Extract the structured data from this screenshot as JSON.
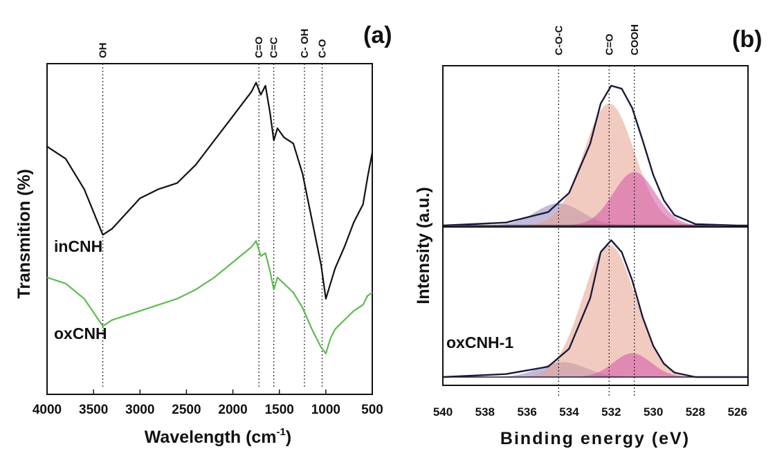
{
  "chart_data": [
    {
      "panel_label": "(a)",
      "type": "line",
      "ylabel": "Transmition (%)",
      "xlabel": "Wavelength (cm",
      "xlabel_sup": "-1",
      "xlabel_tail": ")",
      "xlim": [
        4000,
        500
      ],
      "xticks": [
        "4000",
        "3500",
        "3000",
        "2500",
        "2000",
        "1500",
        "1000",
        "500"
      ],
      "ylim": [
        0,
        1
      ],
      "peak_markers": [
        {
          "label": "OH",
          "x": 3400
        },
        {
          "label": "C=O",
          "x": 1720
        },
        {
          "label": "C=C",
          "x": 1560
        },
        {
          "label": "C- OH",
          "x": 1230
        },
        {
          "label": "C-O",
          "x": 1040
        }
      ],
      "series": [
        {
          "name": "inCNH",
          "color": "#111111",
          "x": [
            4000,
            3800,
            3600,
            3400,
            3300,
            3000,
            2800,
            2600,
            2400,
            2200,
            2000,
            1800,
            1750,
            1700,
            1650,
            1600,
            1560,
            1520,
            1450,
            1350,
            1250,
            1150,
            1050,
            1000,
            950,
            900,
            800,
            700,
            600,
            550,
            500
          ],
          "y": [
            0.78,
            0.74,
            0.64,
            0.49,
            0.51,
            0.61,
            0.64,
            0.66,
            0.72,
            0.8,
            0.88,
            0.96,
            0.99,
            0.95,
            0.98,
            0.89,
            0.8,
            0.84,
            0.81,
            0.79,
            0.69,
            0.54,
            0.39,
            0.28,
            0.33,
            0.38,
            0.45,
            0.53,
            0.59,
            0.68,
            0.76
          ]
        },
        {
          "name": "oxCNH",
          "color": "#5dbb4f",
          "x": [
            4000,
            3800,
            3600,
            3400,
            3300,
            3000,
            2800,
            2600,
            2400,
            2200,
            2000,
            1800,
            1750,
            1700,
            1650,
            1600,
            1560,
            1520,
            1450,
            1350,
            1250,
            1150,
            1050,
            1000,
            950,
            900,
            800,
            700,
            600,
            550,
            500
          ],
          "y": [
            0.35,
            0.33,
            0.28,
            0.19,
            0.21,
            0.24,
            0.26,
            0.28,
            0.31,
            0.35,
            0.4,
            0.45,
            0.47,
            0.42,
            0.43,
            0.37,
            0.31,
            0.35,
            0.33,
            0.3,
            0.25,
            0.18,
            0.12,
            0.1,
            0.15,
            0.18,
            0.21,
            0.24,
            0.26,
            0.29,
            0.3
          ]
        }
      ]
    },
    {
      "panel_label": "(b)",
      "type": "line",
      "ylabel": "Intensity (a.u.)",
      "xlabel": "Binding energy (eV)",
      "xlim": [
        540,
        525.5
      ],
      "xticks": [
        "540",
        "538",
        "536",
        "534",
        "532",
        "530",
        "528",
        "526"
      ],
      "peak_markers": [
        {
          "label": "C-O-C",
          "x": 534.5
        },
        {
          "label": "C=O",
          "x": 532.1
        },
        {
          "label": "COOH",
          "x": 530.9
        }
      ],
      "component_colors": {
        "C-O-C": "#8f84c0",
        "C=O": "#e8a08c",
        "COOH": "#d254a8"
      },
      "panels": [
        {
          "name": "",
          "components": [
            {
              "label": "C-O-C",
              "center": 534.5,
              "height": 0.15,
              "width": 1.1
            },
            {
              "label": "C=O",
              "center": 532.1,
              "height": 0.82,
              "width": 1.2
            },
            {
              "label": "COOH",
              "center": 530.9,
              "height": 0.36,
              "width": 1.0
            }
          ],
          "envelope": {
            "x": [
              540,
              537,
              535,
              534,
              533,
              532.5,
              532,
              531.5,
              531,
              530.5,
              530,
              529.5,
              529,
              528,
              526,
              525.5
            ],
            "y": [
              0.0,
              0.02,
              0.09,
              0.22,
              0.55,
              0.82,
              0.94,
              0.92,
              0.79,
              0.57,
              0.34,
              0.17,
              0.07,
              0.01,
              0.0,
              0.0
            ]
          }
        },
        {
          "name": "oxCNH-1",
          "components": [
            {
              "label": "C-O-C",
              "center": 534.3,
              "height": 0.1,
              "width": 1.1
            },
            {
              "label": "C=O",
              "center": 532.1,
              "height": 0.89,
              "width": 1.25
            },
            {
              "label": "COOH",
              "center": 531.0,
              "height": 0.16,
              "width": 0.9
            }
          ],
          "envelope": {
            "x": [
              540,
              537,
              535,
              534,
              533,
              532.5,
              532,
              531.5,
              531,
              530.5,
              530,
              529.5,
              529,
              528,
              526,
              525.5
            ],
            "y": [
              0.0,
              0.02,
              0.07,
              0.19,
              0.53,
              0.84,
              0.92,
              0.84,
              0.65,
              0.4,
              0.21,
              0.09,
              0.03,
              0.0,
              0.0,
              0.0
            ]
          }
        }
      ]
    }
  ]
}
